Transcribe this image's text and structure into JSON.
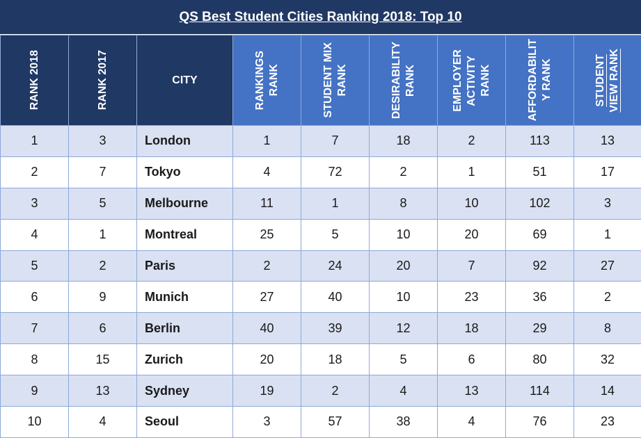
{
  "title": "QS Best Student Cities Ranking 2018: Top 10",
  "colors": {
    "header_dark": "#203864",
    "header_light": "#4472c4",
    "row_band": "#d9e1f2",
    "row_plain": "#ffffff",
    "grid_line": "#8ea9db"
  },
  "chart_data": {
    "type": "table",
    "title": "QS Best Student Cities Ranking 2018: Top 10",
    "columns": [
      {
        "key": "rank_2018",
        "label": "RANK 2018"
      },
      {
        "key": "rank_2017",
        "label": "RANK 2017"
      },
      {
        "key": "city",
        "label": "CITY"
      },
      {
        "key": "rankings_rank",
        "label": "RANKINGS\nRANK"
      },
      {
        "key": "student_mix_rank",
        "label": "STUDENT MIX\nRANK"
      },
      {
        "key": "desirability_rank",
        "label": "DESIRABILITY\nRANK"
      },
      {
        "key": "employer_activity_rank",
        "label": "EMPLOYER\nACTIVITY\nRANK"
      },
      {
        "key": "affordability_rank",
        "label": "AFFORDABILIT\nY RANK"
      },
      {
        "key": "student_view_rank",
        "label": "STUDENT\nVIEW RANK"
      }
    ],
    "rows": [
      {
        "rank_2018": "1",
        "rank_2017": "3",
        "city": "London",
        "rankings_rank": "1",
        "student_mix_rank": "7",
        "desirability_rank": "18",
        "employer_activity_rank": "2",
        "affordability_rank": "113",
        "student_view_rank": "13"
      },
      {
        "rank_2018": "2",
        "rank_2017": "7",
        "city": "Tokyo",
        "rankings_rank": "4",
        "student_mix_rank": "72",
        "desirability_rank": "2",
        "employer_activity_rank": "1",
        "affordability_rank": "51",
        "student_view_rank": "17"
      },
      {
        "rank_2018": "3",
        "rank_2017": "5",
        "city": "Melbourne",
        "rankings_rank": "11",
        "student_mix_rank": "1",
        "desirability_rank": "8",
        "employer_activity_rank": "10",
        "affordability_rank": "102",
        "student_view_rank": "3"
      },
      {
        "rank_2018": "4",
        "rank_2017": "1",
        "city": "Montreal",
        "rankings_rank": "25",
        "student_mix_rank": "5",
        "desirability_rank": "10",
        "employer_activity_rank": "20",
        "affordability_rank": "69",
        "student_view_rank": "1"
      },
      {
        "rank_2018": "5",
        "rank_2017": "2",
        "city": "Paris",
        "rankings_rank": "2",
        "student_mix_rank": "24",
        "desirability_rank": "20",
        "employer_activity_rank": "7",
        "affordability_rank": "92",
        "student_view_rank": "27"
      },
      {
        "rank_2018": "6",
        "rank_2017": "9",
        "city": "Munich",
        "rankings_rank": "27",
        "student_mix_rank": "40",
        "desirability_rank": "10",
        "employer_activity_rank": "23",
        "affordability_rank": "36",
        "student_view_rank": "2"
      },
      {
        "rank_2018": "7",
        "rank_2017": "6",
        "city": "Berlin",
        "rankings_rank": "40",
        "student_mix_rank": "39",
        "desirability_rank": "12",
        "employer_activity_rank": "18",
        "affordability_rank": "29",
        "student_view_rank": "8"
      },
      {
        "rank_2018": "8",
        "rank_2017": "15",
        "city": "Zurich",
        "rankings_rank": "20",
        "student_mix_rank": "18",
        "desirability_rank": "5",
        "employer_activity_rank": "6",
        "affordability_rank": "80",
        "student_view_rank": "32"
      },
      {
        "rank_2018": "9",
        "rank_2017": "13",
        "city": "Sydney",
        "rankings_rank": "19",
        "student_mix_rank": "2",
        "desirability_rank": "4",
        "employer_activity_rank": "13",
        "affordability_rank": "114",
        "student_view_rank": "14"
      },
      {
        "rank_2018": "10",
        "rank_2017": "4",
        "city": "Seoul",
        "rankings_rank": "3",
        "student_mix_rank": "57",
        "desirability_rank": "38",
        "employer_activity_rank": "4",
        "affordability_rank": "76",
        "student_view_rank": "23"
      }
    ]
  }
}
